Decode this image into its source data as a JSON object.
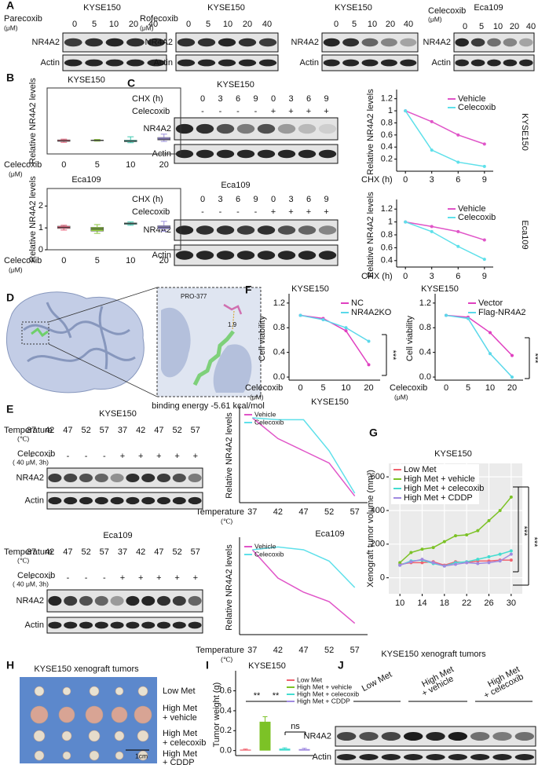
{
  "panels": [
    "A",
    "B",
    "C",
    "D",
    "E",
    "F",
    "G",
    "H",
    "I",
    "J"
  ],
  "blots": [
    {
      "title": "KYSE150",
      "header_rows": [
        {
          "label": "Parecoxib",
          "unit": "(μM)",
          "lanes": [
            "0",
            "5",
            "10",
            "20",
            "40"
          ]
        }
      ],
      "rows": [
        "NR4A2",
        "Actin"
      ]
    },
    {
      "title": "KYSE150",
      "header_rows": [
        {
          "label": "Rofecoxib",
          "unit": "(μM)",
          "lanes": [
            "0",
            "5",
            "10",
            "20",
            "40"
          ]
        }
      ],
      "rows": [
        "NR4A2",
        "Actin"
      ]
    },
    {
      "title": "KYSE150",
      "header_rows": [
        {
          "lanes": [
            "0",
            "5",
            "10",
            "20",
            "40"
          ]
        }
      ],
      "rows": [
        "NR4A2",
        "Actin"
      ]
    },
    {
      "title": "Eca109",
      "header_rows": [
        {
          "label": "Celecoxib",
          "unit": "(μM)",
          "lanes": [
            "0",
            "5",
            "10",
            "20",
            "40"
          ]
        }
      ],
      "rows": [
        "NR4A2",
        "Actin"
      ]
    },
    {
      "title": "KYSE150",
      "header_rows": [
        {
          "label": "CHX (h)",
          "lanes": [
            "0",
            "3",
            "6",
            "9",
            "0",
            "3",
            "6",
            "9"
          ]
        },
        {
          "label": "Celecoxib",
          "lanes": [
            "-",
            "-",
            "-",
            "-",
            "+",
            "+",
            "+",
            "+"
          ]
        }
      ],
      "rows": [
        "NR4A2",
        "Actin"
      ]
    },
    {
      "title": "Eca109",
      "header_rows": [
        {
          "label": "CHX (h)",
          "lanes": [
            "0",
            "3",
            "6",
            "9",
            "0",
            "3",
            "6",
            "9"
          ]
        },
        {
          "label": "Celecoxib",
          "lanes": [
            "-",
            "-",
            "-",
            "-",
            "+",
            "+",
            "+",
            "+"
          ]
        }
      ],
      "rows": [
        "NR4A2",
        "Actin"
      ]
    },
    {
      "title": "KYSE150",
      "header_rows": [
        {
          "label": "Temperature",
          "unit": "(℃)",
          "lanes": [
            "37",
            "42",
            "47",
            "52",
            "57",
            "37",
            "42",
            "47",
            "52",
            "57"
          ]
        },
        {
          "label": "Celecoxib",
          "unit": "( 40 μM, 3h)",
          "lanes": [
            "-",
            "-",
            "-",
            "-",
            "-",
            "+",
            "+",
            "+",
            "+",
            "+"
          ]
        }
      ],
      "rows": [
        "NR4A2",
        "Actin"
      ]
    },
    {
      "title": "Eca109",
      "header_rows": [
        {
          "label": "Temperature",
          "unit": "(℃)",
          "lanes": [
            "37",
            "42",
            "47",
            "52",
            "57",
            "37",
            "42",
            "47",
            "52",
            "57"
          ]
        },
        {
          "label": "Celecoxib",
          "unit": "( 40 μM, 3h)",
          "lanes": [
            "-",
            "-",
            "-",
            "-",
            "-",
            "+",
            "+",
            "+",
            "+",
            "+"
          ]
        }
      ],
      "rows": [
        "NR4A2",
        "Actin"
      ]
    }
  ],
  "xenograft_blot": {
    "title": "KYSE150 xenograft tumors",
    "groups": [
      {
        "lines": [
          "Low Met"
        ]
      },
      {
        "lines": [
          "High Met",
          "+ vehicle"
        ]
      },
      {
        "lines": [
          "High Met",
          "+ celecoxib"
        ]
      }
    ],
    "rows": [
      "NR4A2",
      "Actin"
    ]
  },
  "docking": {
    "residue": "PRO-377",
    "distance": "1.9",
    "energy": "binding energy  -5.61 kcal/mol"
  },
  "photo": {
    "title": "KYSE150 xenograft tumors",
    "scale": "1cm",
    "groups": [
      {
        "lines": [
          "Low Met"
        ]
      },
      {
        "lines": [
          "High Met",
          "+ vehicle"
        ]
      },
      {
        "lines": [
          "High Met",
          "+ celecoxib"
        ]
      },
      {
        "lines": [
          "High Met",
          "+ CDDP"
        ]
      }
    ]
  },
  "chart_data": [
    {
      "type": "box",
      "title": "KYSE150",
      "ylabel": "Relative NR4A2 levels",
      "xlabel": "Celecoxib",
      "xlabel_unit": "(μM)",
      "categories": [
        "0",
        "5",
        "10",
        "20"
      ],
      "colors": [
        "#e8607a",
        "#8dc63f",
        "#3dc9b0",
        "#9a8fdb"
      ],
      "boxes": [
        {
          "min": 0.88,
          "q1": 0.95,
          "median": 1.0,
          "q3": 1.07,
          "max": 1.12
        },
        {
          "min": 0.97,
          "q1": 1.0,
          "median": 1.03,
          "q3": 1.06,
          "max": 1.1
        },
        {
          "min": 0.85,
          "q1": 0.92,
          "median": 0.97,
          "q3": 1.05,
          "max": 1.3
        },
        {
          "min": 0.95,
          "q1": 1.05,
          "median": 1.12,
          "q3": 1.25,
          "max": 1.5
        }
      ],
      "ylim": [
        0,
        5
      ]
    },
    {
      "type": "box",
      "title": "Eca109",
      "ylabel": "Relative NR4A2 levels",
      "xlabel": "Celecoxib",
      "xlabel_unit": "(μM)",
      "categories": [
        "0",
        "5",
        "10",
        "20"
      ],
      "colors": [
        "#e8607a",
        "#8dc63f",
        "#3dc9b0",
        "#9a8fdb"
      ],
      "boxes": [
        {
          "min": 0.9,
          "q1": 0.97,
          "median": 1.02,
          "q3": 1.08,
          "max": 1.12
        },
        {
          "min": 0.75,
          "q1": 0.85,
          "median": 0.95,
          "q3": 1.03,
          "max": 1.15
        },
        {
          "min": 1.12,
          "q1": 1.16,
          "median": 1.2,
          "q3": 1.23,
          "max": 1.27
        },
        {
          "min": 0.85,
          "q1": 0.95,
          "median": 1.03,
          "q3": 1.1,
          "max": 1.3
        }
      ],
      "ylim": [
        0,
        2.8
      ],
      "yticks": [
        0,
        1,
        2
      ]
    },
    {
      "type": "line",
      "x": [
        0,
        3,
        6,
        9
      ],
      "xlim": [
        -1,
        10
      ],
      "xticks": [
        0,
        3,
        6,
        9
      ],
      "xlabel": "CHX (h)",
      "ylabel": "Relative NR4A2 levels",
      "side_label": "KYSE150",
      "ylim": [
        0,
        1.3
      ],
      "yticks": [
        0.2,
        0.4,
        0.6,
        0.8,
        1,
        1.2
      ],
      "legend": "upper right",
      "series": [
        {
          "name": "Vehicle",
          "color": "#e055c8",
          "values": [
            1,
            0.82,
            0.6,
            0.45
          ]
        },
        {
          "name": "Celecoxib",
          "color": "#5ee0ea",
          "values": [
            1,
            0.35,
            0.15,
            0.08
          ]
        }
      ]
    },
    {
      "type": "line",
      "x": [
        0,
        3,
        6,
        9
      ],
      "xlim": [
        -1,
        10
      ],
      "xticks": [
        0,
        3,
        6,
        9
      ],
      "xlabel": "CHX (h)",
      "ylabel": "Relative NR4A2 levels",
      "side_label": "Eca109",
      "ylim": [
        0.3,
        1.3
      ],
      "yticks": [
        0.4,
        0.6,
        0.8,
        1,
        1.2
      ],
      "legend": "upper right",
      "series": [
        {
          "name": "Vehicle",
          "color": "#e055c8",
          "values": [
            1,
            0.93,
            0.85,
            0.72
          ]
        },
        {
          "name": "Celecoxib",
          "color": "#5ee0ea",
          "values": [
            1,
            0.85,
            0.62,
            0.42
          ]
        }
      ]
    },
    {
      "type": "line",
      "title": "KYSE150",
      "categories": [
        "0",
        "5",
        "10",
        "20"
      ],
      "xlabel": "Celecoxib",
      "xlabel_unit": "(μM)",
      "ylabel": "Cell viability",
      "ylim": [
        -0.05,
        1.3
      ],
      "yticks": [
        {
          "value": 0,
          "label": "0.0"
        },
        0.4,
        0.8,
        1.2
      ],
      "legend": "upper right",
      "series": [
        {
          "name": "NC",
          "color": "#e040c0",
          "values": [
            1,
            0.95,
            0.75,
            0.2
          ]
        },
        {
          "name": "NR4A2KO",
          "color": "#5ad8ea",
          "values": [
            1,
            0.93,
            0.8,
            0.58
          ]
        }
      ],
      "annotations": [
        "***"
      ]
    },
    {
      "type": "line",
      "title": "KYSE150",
      "categories": [
        "0",
        "5",
        "10",
        "20"
      ],
      "xlabel": "Celecoxib",
      "xlabel_unit": "(μM)",
      "ylabel": "Cell viability",
      "ylim": [
        -0.05,
        1.3
      ],
      "yticks": [
        {
          "value": 0,
          "label": "0.0"
        },
        0.4,
        0.8,
        1.2
      ],
      "legend": "upper right",
      "series": [
        {
          "name": "Vector",
          "color": "#e040c0",
          "values": [
            1,
            0.97,
            0.72,
            0.35
          ]
        },
        {
          "name": "Flag-NR4A2",
          "color": "#5ad8ea",
          "values": [
            1,
            0.95,
            0.38,
            0.0
          ]
        }
      ],
      "annotations": [
        "***"
      ]
    },
    {
      "type": "line",
      "title": "KYSE150",
      "categories": [
        "37",
        "42",
        "47",
        "52",
        "57"
      ],
      "xlabel": "Temperature",
      "xlabel_unit": "(℃)",
      "ylabel": "Relative NR4A2 levels",
      "ylim": [
        0.1,
        1.1
      ],
      "legend": "upper left",
      "series": [
        {
          "name": "Vehicle",
          "color": "#e055c8",
          "values": [
            1,
            0.78,
            0.65,
            0.52,
            0.17
          ]
        },
        {
          "name": "Celecoxib",
          "color": "#5ee0ea",
          "values": [
            1,
            0.98,
            0.98,
            0.65,
            0.2
          ]
        }
      ]
    },
    {
      "type": "line",
      "title": "Eca109",
      "categories": [
        "37",
        "42",
        "47",
        "52",
        "57"
      ],
      "xlabel": "Temperature",
      "xlabel_unit": "(℃)",
      "ylabel": "Relative NR4A2 levels",
      "ylim": [
        0.1,
        1.1
      ],
      "legend": "upper left",
      "series": [
        {
          "name": "Vehicle",
          "color": "#e055c8",
          "values": [
            1,
            0.7,
            0.55,
            0.45,
            0.22
          ]
        },
        {
          "name": "Celecoxib",
          "color": "#5ee0ea",
          "values": [
            1,
            1.03,
            1.0,
            0.88,
            0.6
          ]
        }
      ]
    },
    {
      "type": "line",
      "title": "KYSE150",
      "x": [
        10,
        12,
        14,
        16,
        18,
        20,
        22,
        24,
        26,
        28,
        30
      ],
      "xlim": [
        8,
        32
      ],
      "xticks": [
        10,
        14,
        18,
        22,
        26,
        30
      ],
      "ylabel": "Xenograft tumor volume (mm³)",
      "ylim": [
        -95,
        680
      ],
      "yticks": [
        0,
        200,
        400,
        600
      ],
      "grid": true,
      "legend": "upper left",
      "series": [
        {
          "name": "Low Met",
          "color": "#f0626e",
          "values": [
            80,
            90,
            90,
            95,
            75,
            95,
            90,
            100,
            100,
            105,
            105
          ]
        },
        {
          "name": "High Met + vehicle",
          "color": "#7cc226",
          "values": [
            90,
            150,
            170,
            180,
            215,
            250,
            255,
            280,
            340,
            400,
            480
          ]
        },
        {
          "name": "High Met + celecoxib",
          "color": "#44dcd0",
          "values": [
            75,
            100,
            105,
            85,
            70,
            90,
            95,
            110,
            125,
            140,
            160
          ]
        },
        {
          "name": "High Met + CDDP",
          "color": "#a08ae0",
          "values": [
            75,
            95,
            110,
            90,
            70,
            80,
            90,
            85,
            90,
            100,
            140
          ]
        }
      ],
      "annotations": [
        "***",
        "***"
      ]
    },
    {
      "type": "bar",
      "title": "KYSE150",
      "categories": [
        "Low Met",
        "High Met + vehicle",
        "High Met + celecoxib",
        "High Met + CDDP"
      ],
      "colors": [
        "#f0626e",
        "#7cc226",
        "#44dcd0",
        "#a08ae0"
      ],
      "values": [
        0.01,
        0.29,
        0.02,
        0.015
      ],
      "errors": [
        0.005,
        0.05,
        0.008,
        0.008
      ],
      "ylabel": "Tumor weight (g)",
      "ylim": [
        -0.05,
        0.77
      ],
      "yticks": [
        {
          "value": 0,
          "label": "0.0"
        },
        0.2,
        0.4,
        0.6
      ],
      "legend": "upper right",
      "annotations": [
        "**",
        "**",
        "ns"
      ]
    }
  ]
}
